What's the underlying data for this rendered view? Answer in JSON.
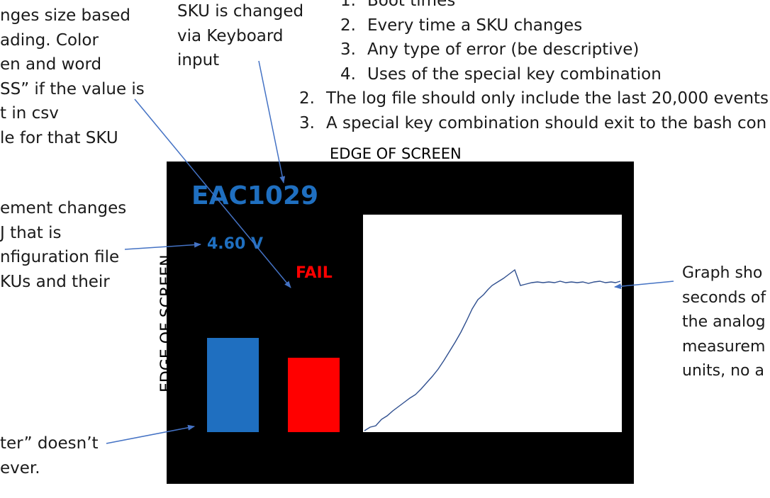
{
  "left_notes": {
    "sku_size": [
      "nges size based",
      "ading. Color",
      "en and word",
      "SS” if the value is",
      "t in csv",
      "le for that SKU"
    ],
    "measurement": [
      "ement changes",
      "J that is",
      "nfiguration file",
      "KUs and their"
    ],
    "footer": [
      "ter” doesn’t",
      "ever."
    ]
  },
  "sku_note": [
    "SKU is changed",
    "via Keyboard",
    "input"
  ],
  "log_list": {
    "sub_items": [
      {
        "num": "1.",
        "text": "Boot times"
      },
      {
        "num": "2.",
        "text": "Every time a SKU changes"
      },
      {
        "num": "3.",
        "text": "Any type of error (be descriptive)"
      },
      {
        "num": "4.",
        "text": "Uses of the special key combination"
      }
    ],
    "items": [
      {
        "num": "2.",
        "text": "The log file should only include the last 20,000 events"
      },
      {
        "num": "3.",
        "text": "A special key combination should exit to the bash con"
      }
    ]
  },
  "edge_label_top": "EDGE OF SCREEN",
  "edge_label_side": "EDGE OF SCREEN",
  "screen": {
    "sku": "EAC1029",
    "voltage_label": "4.60 V",
    "status_label": "FAIL",
    "voltage_level": 0.86,
    "status_level": 0.68,
    "colors": {
      "background": "#000000",
      "sku": "#1f6fc0",
      "voltage_bar": "#1f6fc0",
      "status_bar": "#ff0000",
      "graph_bg": "#ffffff",
      "graph_line": "#2f4f8f"
    }
  },
  "graph_note": [
    "Graph sho",
    "seconds of",
    "the analog",
    "measurem",
    "units, no a"
  ]
}
